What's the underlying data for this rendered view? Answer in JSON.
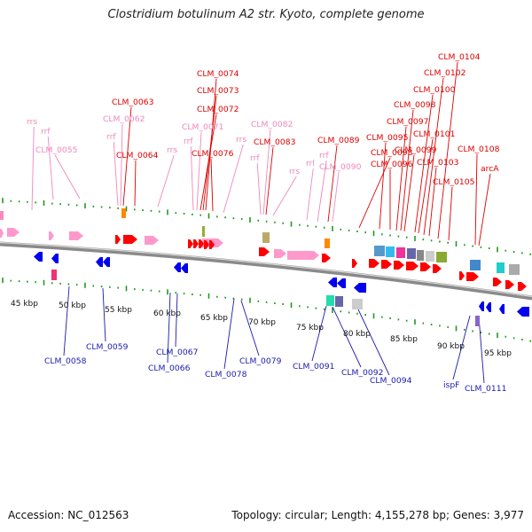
{
  "title": "Clostridium botulinum A2 str. Kyoto, complete genome",
  "footer": {
    "accession": "Accession: NC_012563",
    "summary": "Topology: circular; Length: 4,155,278 bp; Genes: 3,977"
  },
  "colors": {
    "forward_label": "#dd0000",
    "reverse_label": "#1a1aaa",
    "rna_label": "#ee88bb",
    "forward_gene": "#ff0000",
    "reverse_gene": "#0000ee",
    "rna_gene": "#ff99cc",
    "tick": "#229922",
    "backbone": "#999999"
  },
  "scale_labels": [
    "45 kbp",
    "50 kbp",
    "55 kbp",
    "60 kbp",
    "65 kbp",
    "70 kbp",
    "75 kbp",
    "80 kbp",
    "85 kbp",
    "90 kbp",
    "95 kbp"
  ],
  "top_labels": [
    {
      "text": "rrs",
      "kind": "rna"
    },
    {
      "text": "rrf",
      "kind": "rna"
    },
    {
      "text": "CLM_0055",
      "kind": "rna"
    },
    {
      "text": "rrf",
      "kind": "rna"
    },
    {
      "text": "CLM_0062",
      "kind": "rna"
    },
    {
      "text": "CLM_0063",
      "kind": "fwd"
    },
    {
      "text": "CLM_0064",
      "kind": "fwd"
    },
    {
      "text": "rrs",
      "kind": "rna"
    },
    {
      "text": "rrf",
      "kind": "rna"
    },
    {
      "text": "CLM_0071",
      "kind": "rna"
    },
    {
      "text": "CLM_0072",
      "kind": "fwd"
    },
    {
      "text": "CLM_0073",
      "kind": "fwd"
    },
    {
      "text": "CLM_0074",
      "kind": "fwd"
    },
    {
      "text": "CLM_0076",
      "kind": "fwd"
    },
    {
      "text": "rrs",
      "kind": "rna"
    },
    {
      "text": "rrf",
      "kind": "rna"
    },
    {
      "text": "CLM_0082",
      "kind": "rna"
    },
    {
      "text": "CLM_0083",
      "kind": "fwd"
    },
    {
      "text": "rrs",
      "kind": "rna"
    },
    {
      "text": "rrl",
      "kind": "rna"
    },
    {
      "text": "rrf",
      "kind": "rna"
    },
    {
      "text": "CLM_0089",
      "kind": "fwd"
    },
    {
      "text": "CLM_0090",
      "kind": "rna"
    },
    {
      "text": "CLM_0093",
      "kind": "fwd"
    },
    {
      "text": "CLM_0095",
      "kind": "fwd"
    },
    {
      "text": "CLM_0096",
      "kind": "fwd"
    },
    {
      "text": "CLM_0097",
      "kind": "fwd"
    },
    {
      "text": "CLM_0098",
      "kind": "fwd"
    },
    {
      "text": "CLM_0099",
      "kind": "fwd"
    },
    {
      "text": "CLM_0100",
      "kind": "fwd"
    },
    {
      "text": "CLM_0101",
      "kind": "fwd"
    },
    {
      "text": "CLM_0102",
      "kind": "fwd"
    },
    {
      "text": "CLM_0103",
      "kind": "fwd"
    },
    {
      "text": "CLM_0104",
      "kind": "fwd"
    },
    {
      "text": "CLM_0105",
      "kind": "fwd"
    },
    {
      "text": "CLM_0108",
      "kind": "fwd"
    },
    {
      "text": "arcA",
      "kind": "fwd"
    }
  ],
  "bottom_labels": [
    {
      "text": "CLM_0058"
    },
    {
      "text": "CLM_0059"
    },
    {
      "text": "CLM_0066"
    },
    {
      "text": "CLM_0067"
    },
    {
      "text": "CLM_0078"
    },
    {
      "text": "CLM_0079"
    },
    {
      "text": "CLM_0091"
    },
    {
      "text": "CLM_0092"
    },
    {
      "text": "CLM_0094"
    },
    {
      "text": "ispF"
    },
    {
      "text": "CLM_0111"
    }
  ]
}
